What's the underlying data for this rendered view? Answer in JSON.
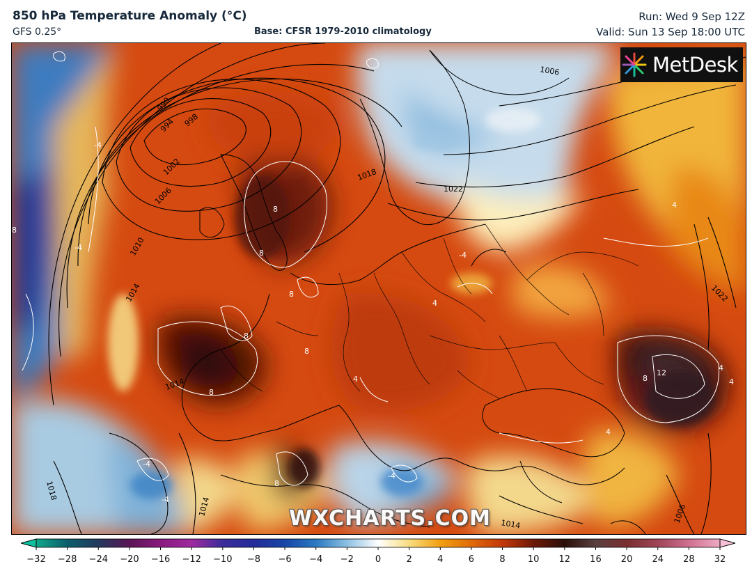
{
  "header": {
    "title": "850 hPa Temperature Anomaly (°C)",
    "model": "GFS 0.25°",
    "base": "Base: CFSR 1979-2010 climatology",
    "run": "Run: Wed 9 Sep 12Z",
    "valid": "Valid: Sun 13 Sep 18:00 UTC"
  },
  "logo": {
    "text": "MetDesk",
    "icon": "metdesk-starburst-icon"
  },
  "watermark": "WXCHARTS.COM",
  "map": {
    "isobar_labels": [
      "990",
      "994",
      "998",
      "1002",
      "1006",
      "1010",
      "1014",
      "1018",
      "1022",
      "1006",
      "1022",
      "1014",
      "1018",
      "1014",
      "1014",
      "1006"
    ],
    "anomaly_labels": [
      "8",
      "8",
      "8",
      "8",
      "8",
      "8",
      "8",
      "8",
      "12",
      "4",
      "4",
      "4",
      "4",
      "-4",
      "-4",
      "-4",
      "-4",
      "-4",
      "-4",
      "8",
      "4",
      "4"
    ]
  },
  "colorbar": {
    "ticks": [
      "−32",
      "−28",
      "−24",
      "−20",
      "−16",
      "−12",
      "−10",
      "−8",
      "−6",
      "−4",
      "−2",
      "0",
      "2",
      "4",
      "6",
      "8",
      "10",
      "12",
      "16",
      "20",
      "24",
      "28",
      "32"
    ],
    "colors": [
      "#0fa88a",
      "#0c5e6b",
      "#243a5e",
      "#5a1555",
      "#8a1a7e",
      "#a02aa0",
      "#3b2c9a",
      "#242c9a",
      "#1846a8",
      "#2b7ac2",
      "#8cc0e2",
      "#ffffff",
      "#f8dd80",
      "#f2a012",
      "#e06a0a",
      "#c3380a",
      "#6e1a08",
      "#2a0f0a",
      "#5a4040",
      "#7a2e30",
      "#a04458",
      "#d07090",
      "#eeaac4"
    ],
    "left_arrow_color": "#0fc0a0",
    "right_arrow_color": "#f7bfd6"
  },
  "colors": {
    "header_text": "#16283a",
    "frame": "#000000"
  }
}
